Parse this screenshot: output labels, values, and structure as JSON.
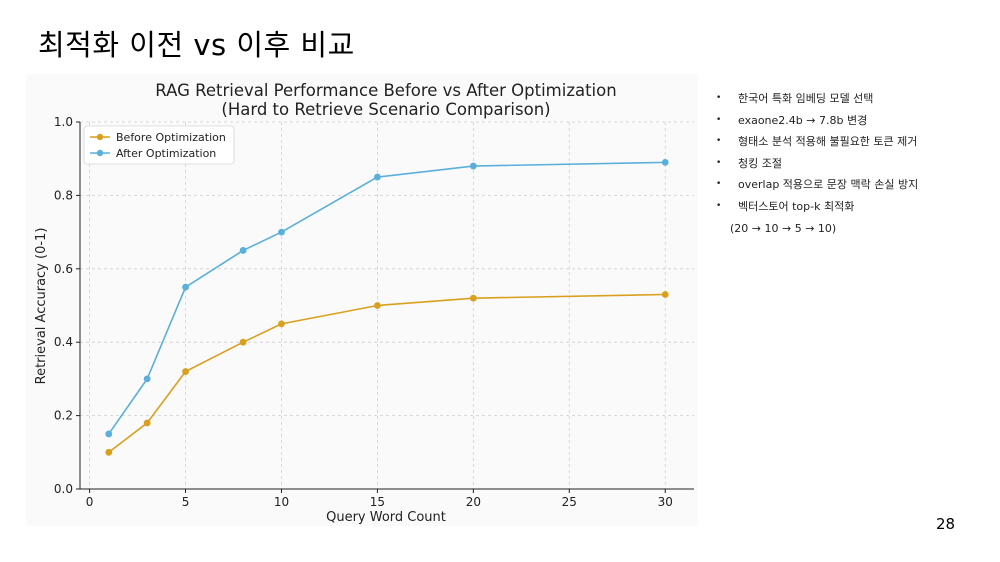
{
  "slide": {
    "title": "최적화 이전 vs 이후 비교",
    "page_number": "28"
  },
  "bullets": [
    "한국어 특화 임베딩 모델 선택",
    "exaone2.4b → 7.8b 변경",
    "형태소 분석 적용해 불필요한 토큰 제거",
    "청킹 조절",
    "overlap 적용으로 문장 맥락 손실 방지",
    "벡터스토어 top-k 최적화"
  ],
  "note": "(20 → 10 → 5 → 10)",
  "chart_data": {
    "type": "line",
    "title": "RAG Retrieval Performance Before vs After Optimization",
    "subtitle": "(Hard to Retrieve Scenario Comparison)",
    "xlabel": "Query Word Count",
    "ylabel": "Retrieval Accuracy (0-1)",
    "x": [
      1,
      3,
      5,
      8,
      10,
      15,
      20,
      30
    ],
    "xlim": [
      -0.5,
      31.5
    ],
    "ylim": [
      0,
      1.0
    ],
    "xticks": [
      "0",
      "5",
      "10",
      "15",
      "20",
      "25",
      "30"
    ],
    "yticks": [
      "0.0",
      "0.2",
      "0.4",
      "0.6",
      "0.8",
      "1.0"
    ],
    "grid": true,
    "legend": "top-left",
    "series": [
      {
        "name": "Before Optimization",
        "color": "#D9A01E",
        "values": [
          0.1,
          0.18,
          0.32,
          0.4,
          0.45,
          0.5,
          0.52,
          0.53
        ]
      },
      {
        "name": "After Optimization",
        "color": "#5AAFDB",
        "values": [
          0.15,
          0.3,
          0.55,
          0.65,
          0.7,
          0.85,
          0.88,
          0.89
        ]
      }
    ]
  }
}
